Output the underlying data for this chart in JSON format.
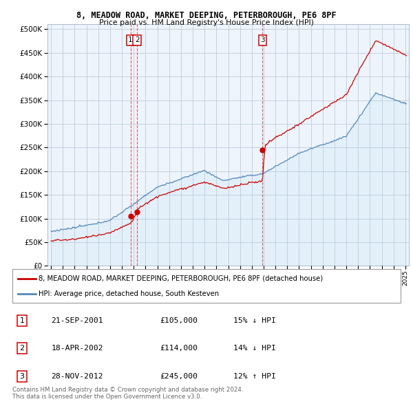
{
  "title_line1": "8, MEADOW ROAD, MARKET DEEPING, PETERBOROUGH, PE6 8PF",
  "title_line2": "Price paid vs. HM Land Registry's House Price Index (HPI)",
  "hpi_legend": "HPI: Average price, detached house, South Kesteven",
  "prop_legend": "8, MEADOW ROAD, MARKET DEEPING, PETERBOROUGH, PE6 8PF (detached house)",
  "prop_color": "#cc0000",
  "hpi_color": "#5588bb",
  "hpi_fill_color": "#ddeeff",
  "background_color": "#ffffff",
  "grid_color": "#cccccc",
  "sale_points": [
    {
      "date_num": 2001.73,
      "price": 105000,
      "label": "1"
    },
    {
      "date_num": 2002.3,
      "price": 114000,
      "label": "2"
    },
    {
      "date_num": 2012.91,
      "price": 245000,
      "label": "3"
    }
  ],
  "vline_color": "#dd4444",
  "annotation_box_color": "#cc0000",
  "table_rows": [
    {
      "num": "1",
      "date": "21-SEP-2001",
      "price": "£105,000",
      "hpi": "15% ↓ HPI"
    },
    {
      "num": "2",
      "date": "18-APR-2002",
      "price": "£114,000",
      "hpi": "14% ↓ HPI"
    },
    {
      "num": "3",
      "date": "28-NOV-2012",
      "price": "£245,000",
      "hpi": "12% ↑ HPI"
    }
  ],
  "footer_text": "Contains HM Land Registry data © Crown copyright and database right 2024.\nThis data is licensed under the Open Government Licence v3.0.",
  "ylim": [
    0,
    510000
  ],
  "xlim_start": 1994.7,
  "xlim_end": 2025.3,
  "yticks": [
    0,
    50000,
    100000,
    150000,
    200000,
    250000,
    300000,
    350000,
    400000,
    450000,
    500000
  ],
  "xticks": [
    1995,
    1996,
    1997,
    1998,
    1999,
    2000,
    2001,
    2002,
    2003,
    2004,
    2005,
    2006,
    2007,
    2008,
    2009,
    2010,
    2011,
    2012,
    2013,
    2014,
    2015,
    2016,
    2017,
    2018,
    2019,
    2020,
    2021,
    2022,
    2023,
    2024,
    2025
  ]
}
